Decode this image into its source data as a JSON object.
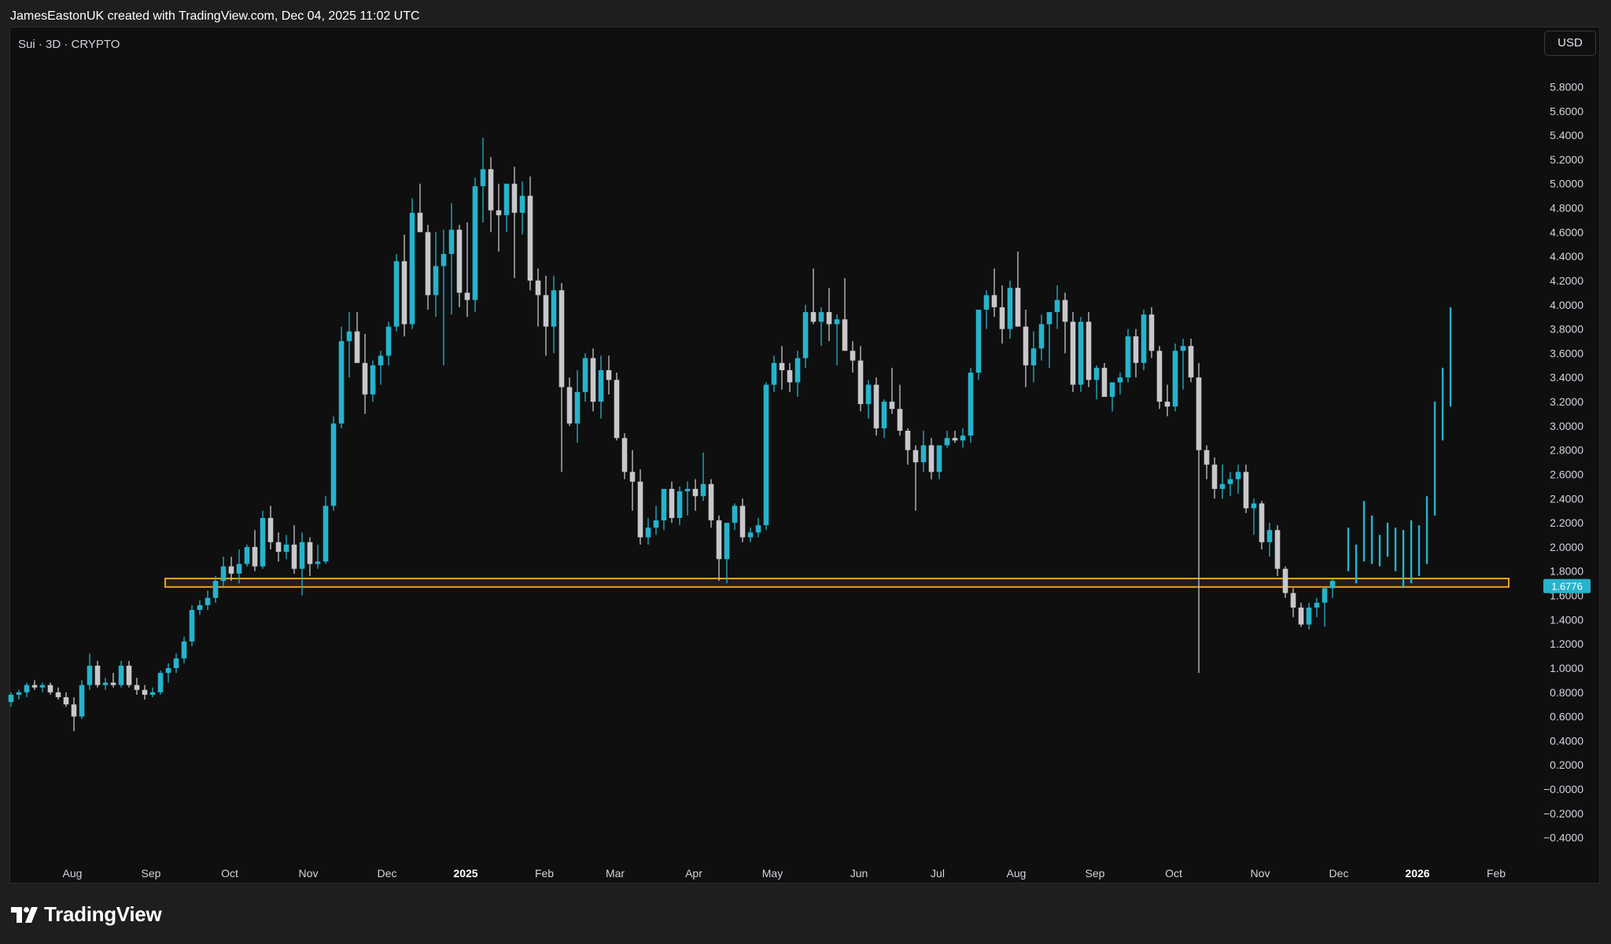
{
  "header": {
    "credit": "JamesEastonUK created with TradingView.com, Dec 04, 2025 11:02 UTC"
  },
  "symbol_label": "Sui · 3D · CRYPTO",
  "currency_button": "USD",
  "footer": {
    "brand": "TradingView"
  },
  "colors": {
    "background": "#0f0f0f",
    "up": "#26b3cc",
    "down": "#c8c8cc",
    "zone": "#f0a020",
    "price_tag": "#26b3cc"
  },
  "chart_data": {
    "type": "candlestick",
    "symbol": "Sui",
    "timeframe": "3D",
    "price_axis_labels": [
      "5.8000",
      "5.6000",
      "5.4000",
      "5.2000",
      "5.0000",
      "4.8000",
      "4.6000",
      "4.4000",
      "4.2000",
      "4.0000",
      "3.8000",
      "3.6000",
      "3.4000",
      "3.2000",
      "3.0000",
      "2.8000",
      "2.6000",
      "2.4000",
      "2.2000",
      "2.0000",
      "1.8000",
      "1.6000",
      "1.4000",
      "1.2000",
      "1.0000",
      "0.8000",
      "0.6000",
      "0.4000",
      "0.2000",
      "−0.0000",
      "−0.2000",
      "−0.4000"
    ],
    "ylim": [
      -0.48,
      5.92
    ],
    "time_axis_labels": [
      "Aug",
      "Sep",
      "Oct",
      "Nov",
      "Dec",
      "2025",
      "Feb",
      "Mar",
      "Apr",
      "May",
      "Jun",
      "Jul",
      "Aug",
      "Sep",
      "Oct",
      "Nov",
      "Dec",
      "2026",
      "Feb"
    ],
    "bold_time_labels": [
      "2025",
      "2026"
    ],
    "time_axis_label_bar_index": [
      0,
      10,
      20,
      30,
      40,
      50,
      60,
      69,
      79,
      89,
      100,
      110,
      120,
      130,
      140,
      151,
      161,
      171,
      181
    ],
    "current_price": "1.6776",
    "support_zone": {
      "low": 1.67,
      "high": 1.74,
      "from_bar": 20,
      "to_bar": 190
    },
    "candles_ohlc": [
      [
        0.72,
        0.8,
        0.68,
        0.78
      ],
      [
        0.78,
        0.82,
        0.74,
        0.8
      ],
      [
        0.8,
        0.88,
        0.76,
        0.86
      ],
      [
        0.86,
        0.9,
        0.82,
        0.84
      ],
      [
        0.84,
        0.88,
        0.8,
        0.86
      ],
      [
        0.86,
        0.88,
        0.78,
        0.8
      ],
      [
        0.8,
        0.84,
        0.74,
        0.76
      ],
      [
        0.76,
        0.8,
        0.68,
        0.7
      ],
      [
        0.7,
        0.76,
        0.48,
        0.6
      ],
      [
        0.6,
        0.9,
        0.58,
        0.86
      ],
      [
        0.86,
        1.12,
        0.82,
        1.02
      ],
      [
        1.02,
        1.06,
        0.84,
        0.86
      ],
      [
        0.86,
        0.92,
        0.82,
        0.88
      ],
      [
        0.88,
        0.96,
        0.84,
        0.86
      ],
      [
        0.86,
        1.06,
        0.84,
        1.02
      ],
      [
        1.02,
        1.06,
        0.84,
        0.86
      ],
      [
        0.86,
        0.92,
        0.78,
        0.82
      ],
      [
        0.82,
        0.86,
        0.74,
        0.78
      ],
      [
        0.78,
        0.84,
        0.76,
        0.8
      ],
      [
        0.8,
        0.98,
        0.78,
        0.96
      ],
      [
        0.96,
        1.04,
        0.88,
        1.0
      ],
      [
        1.0,
        1.12,
        0.96,
        1.08
      ],
      [
        1.08,
        1.26,
        1.04,
        1.22
      ],
      [
        1.22,
        1.52,
        1.18,
        1.48
      ],
      [
        1.48,
        1.56,
        1.44,
        1.52
      ],
      [
        1.52,
        1.64,
        1.48,
        1.58
      ],
      [
        1.58,
        1.76,
        1.54,
        1.72
      ],
      [
        1.72,
        1.92,
        1.66,
        1.84
      ],
      [
        1.84,
        1.92,
        1.72,
        1.78
      ],
      [
        1.78,
        1.98,
        1.7,
        1.86
      ],
      [
        1.86,
        2.02,
        1.84,
        2.0
      ],
      [
        2.0,
        2.14,
        1.8,
        1.84
      ],
      [
        1.84,
        2.3,
        1.82,
        2.24
      ],
      [
        2.24,
        2.34,
        1.98,
        2.04
      ],
      [
        2.04,
        2.12,
        1.88,
        1.96
      ],
      [
        1.96,
        2.1,
        1.9,
        2.02
      ],
      [
        2.02,
        2.18,
        1.78,
        1.82
      ],
      [
        1.82,
        2.12,
        1.6,
        2.04
      ],
      [
        2.04,
        2.08,
        1.76,
        1.86
      ],
      [
        1.86,
        2.02,
        1.82,
        1.88
      ],
      [
        1.88,
        2.42,
        1.86,
        2.34
      ],
      [
        2.34,
        3.08,
        2.3,
        3.02
      ],
      [
        3.02,
        3.82,
        2.98,
        3.7
      ],
      [
        3.7,
        3.94,
        3.4,
        3.78
      ],
      [
        3.78,
        3.94,
        3.56,
        3.52
      ],
      [
        3.52,
        3.76,
        3.1,
        3.26
      ],
      [
        3.26,
        3.54,
        3.2,
        3.5
      ],
      [
        3.5,
        3.62,
        3.34,
        3.58
      ],
      [
        3.58,
        3.86,
        3.5,
        3.82
      ],
      [
        3.82,
        4.42,
        3.78,
        4.36
      ],
      [
        4.36,
        4.58,
        3.74,
        3.84
      ],
      [
        3.84,
        4.88,
        3.8,
        4.76
      ],
      [
        4.76,
        5.0,
        4.66,
        4.6
      ],
      [
        4.6,
        4.66,
        3.96,
        4.08
      ],
      [
        4.08,
        4.6,
        3.9,
        4.32
      ],
      [
        4.32,
        4.62,
        3.5,
        4.42
      ],
      [
        4.42,
        4.84,
        3.92,
        4.62
      ],
      [
        4.62,
        4.66,
        3.98,
        4.1
      ],
      [
        4.1,
        4.68,
        3.9,
        4.04
      ],
      [
        4.04,
        5.05,
        3.94,
        4.98
      ],
      [
        4.98,
        5.38,
        4.68,
        5.12
      ],
      [
        5.12,
        5.22,
        4.6,
        4.78
      ],
      [
        4.78,
        5.0,
        4.44,
        4.74
      ],
      [
        4.74,
        5.0,
        4.6,
        5.0
      ],
      [
        5.0,
        5.14,
        4.22,
        4.76
      ],
      [
        4.76,
        5.02,
        4.58,
        4.9
      ],
      [
        4.9,
        5.06,
        4.12,
        4.2
      ],
      [
        4.2,
        4.3,
        3.82,
        4.08
      ],
      [
        4.08,
        4.24,
        3.58,
        3.82
      ],
      [
        3.82,
        4.24,
        3.6,
        4.12
      ],
      [
        4.12,
        4.18,
        2.62,
        3.32
      ],
      [
        3.32,
        3.4,
        3.0,
        3.02
      ],
      [
        3.02,
        3.46,
        2.86,
        3.28
      ],
      [
        3.28,
        3.6,
        3.2,
        3.56
      ],
      [
        3.56,
        3.64,
        3.12,
        3.2
      ],
      [
        3.2,
        3.58,
        3.06,
        3.46
      ],
      [
        3.46,
        3.58,
        3.26,
        3.38
      ],
      [
        3.38,
        3.44,
        2.88,
        2.9
      ],
      [
        2.9,
        2.94,
        2.56,
        2.62
      ],
      [
        2.62,
        2.8,
        2.3,
        2.54
      ],
      [
        2.54,
        2.64,
        2.02,
        2.08
      ],
      [
        2.08,
        2.24,
        2.02,
        2.16
      ],
      [
        2.16,
        2.34,
        2.1,
        2.22
      ],
      [
        2.22,
        2.38,
        2.14,
        2.48
      ],
      [
        2.48,
        2.54,
        2.2,
        2.24
      ],
      [
        2.24,
        2.5,
        2.18,
        2.46
      ],
      [
        2.46,
        2.54,
        2.26,
        2.48
      ],
      [
        2.48,
        2.56,
        2.3,
        2.42
      ],
      [
        2.42,
        2.78,
        2.38,
        2.52
      ],
      [
        2.52,
        2.56,
        2.16,
        2.22
      ],
      [
        2.22,
        2.26,
        1.72,
        1.9
      ],
      [
        1.9,
        2.18,
        1.7,
        2.2
      ],
      [
        2.2,
        2.36,
        2.14,
        2.34
      ],
      [
        2.34,
        2.4,
        2.04,
        2.08
      ],
      [
        2.08,
        2.16,
        2.04,
        2.12
      ],
      [
        2.12,
        2.24,
        2.08,
        2.18
      ],
      [
        2.18,
        3.36,
        2.14,
        3.34
      ],
      [
        3.34,
        3.58,
        3.28,
        3.52
      ],
      [
        3.52,
        3.66,
        3.3,
        3.46
      ],
      [
        3.46,
        3.52,
        3.28,
        3.36
      ],
      [
        3.36,
        3.62,
        3.24,
        3.56
      ],
      [
        3.56,
        4.0,
        3.48,
        3.94
      ],
      [
        3.94,
        4.3,
        3.84,
        3.86
      ],
      [
        3.86,
        3.98,
        3.66,
        3.94
      ],
      [
        3.94,
        4.14,
        3.7,
        3.84
      ],
      [
        3.84,
        3.92,
        3.5,
        3.88
      ],
      [
        3.88,
        4.22,
        3.66,
        3.62
      ],
      [
        3.62,
        3.7,
        3.44,
        3.54
      ],
      [
        3.54,
        3.66,
        3.12,
        3.18
      ],
      [
        3.18,
        3.38,
        3.06,
        3.34
      ],
      [
        3.34,
        3.4,
        2.92,
        2.98
      ],
      [
        2.98,
        3.22,
        2.9,
        3.2
      ],
      [
        3.2,
        3.48,
        3.1,
        3.14
      ],
      [
        3.14,
        3.34,
        2.92,
        2.96
      ],
      [
        2.96,
        2.98,
        2.68,
        2.8
      ],
      [
        2.8,
        2.84,
        2.3,
        2.7
      ],
      [
        2.7,
        2.96,
        2.62,
        2.84
      ],
      [
        2.84,
        2.9,
        2.56,
        2.62
      ],
      [
        2.62,
        2.78,
        2.56,
        2.84
      ],
      [
        2.84,
        2.96,
        2.82,
        2.9
      ],
      [
        2.9,
        2.96,
        2.86,
        2.88
      ],
      [
        2.88,
        2.98,
        2.82,
        2.92
      ],
      [
        2.92,
        3.48,
        2.86,
        3.44
      ],
      [
        3.44,
        3.84,
        3.38,
        3.96
      ],
      [
        3.96,
        4.12,
        3.8,
        4.08
      ],
      [
        4.08,
        4.3,
        3.9,
        3.98
      ],
      [
        3.98,
        4.16,
        3.68,
        3.8
      ],
      [
        3.8,
        4.2,
        3.72,
        4.14
      ],
      [
        4.14,
        4.44,
        3.88,
        3.82
      ],
      [
        3.82,
        3.96,
        3.32,
        3.5
      ],
      [
        3.5,
        3.78,
        3.36,
        3.64
      ],
      [
        3.64,
        3.92,
        3.54,
        3.84
      ],
      [
        3.84,
        3.94,
        3.48,
        3.94
      ],
      [
        3.94,
        4.16,
        3.8,
        4.04
      ],
      [
        4.04,
        4.1,
        3.6,
        3.86
      ],
      [
        3.86,
        3.94,
        3.28,
        3.34
      ],
      [
        3.34,
        3.9,
        3.28,
        3.86
      ],
      [
        3.86,
        3.94,
        3.32,
        3.38
      ],
      [
        3.38,
        3.5,
        3.22,
        3.48
      ],
      [
        3.48,
        3.52,
        3.26,
        3.24
      ],
      [
        3.24,
        3.34,
        3.12,
        3.36
      ],
      [
        3.36,
        3.44,
        3.26,
        3.4
      ],
      [
        3.4,
        3.8,
        3.36,
        3.74
      ],
      [
        3.74,
        3.8,
        3.4,
        3.52
      ],
      [
        3.52,
        3.96,
        3.46,
        3.92
      ],
      [
        3.92,
        3.98,
        3.56,
        3.62
      ],
      [
        3.62,
        3.66,
        3.14,
        3.2
      ],
      [
        3.2,
        3.34,
        3.08,
        3.16
      ],
      [
        3.16,
        3.68,
        3.12,
        3.62
      ],
      [
        3.62,
        3.72,
        3.3,
        3.66
      ],
      [
        3.66,
        3.72,
        3.36,
        3.4
      ],
      [
        3.4,
        3.52,
        0.96,
        2.8
      ],
      [
        2.8,
        2.84,
        2.56,
        2.68
      ],
      [
        2.68,
        2.74,
        2.4,
        2.48
      ],
      [
        2.48,
        2.68,
        2.4,
        2.52
      ],
      [
        2.52,
        2.62,
        2.42,
        2.56
      ],
      [
        2.56,
        2.68,
        2.44,
        2.62
      ],
      [
        2.62,
        2.68,
        2.28,
        2.32
      ],
      [
        2.32,
        2.4,
        2.1,
        2.36
      ],
      [
        2.36,
        2.38,
        1.98,
        2.04
      ],
      [
        2.04,
        2.2,
        1.92,
        2.14
      ],
      [
        2.14,
        2.18,
        1.76,
        1.82
      ],
      [
        1.82,
        1.84,
        1.58,
        1.62
      ],
      [
        1.62,
        1.66,
        1.42,
        1.5
      ],
      [
        1.5,
        1.54,
        1.34,
        1.36
      ],
      [
        1.36,
        1.54,
        1.32,
        1.5
      ],
      [
        1.5,
        1.58,
        1.42,
        1.54
      ],
      [
        1.54,
        1.66,
        1.34,
        1.66
      ],
      [
        1.66,
        1.74,
        1.58,
        1.72
      ]
    ],
    "projection_segments": [
      [
        1.8,
        2.16
      ],
      [
        1.7,
        2.02
      ],
      [
        1.88,
        2.38
      ],
      [
        1.86,
        2.26
      ],
      [
        1.84,
        2.1
      ],
      [
        1.92,
        2.2
      ],
      [
        1.8,
        2.16
      ],
      [
        1.66,
        2.14
      ],
      [
        1.7,
        2.22
      ],
      [
        1.76,
        2.18
      ],
      [
        1.86,
        2.42
      ],
      [
        2.26,
        3.2
      ],
      [
        2.88,
        3.48
      ],
      [
        3.16,
        3.98
      ]
    ]
  }
}
